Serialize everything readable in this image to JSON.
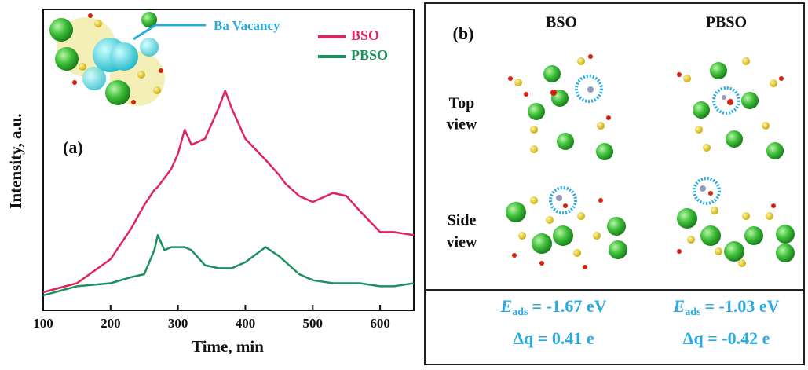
{
  "chart_data": {
    "type": "line",
    "xlabel": "Time, min",
    "ylabel": "Intensity, a.u.",
    "annotations": [
      "(a)",
      "Ba Vacancy"
    ],
    "x": [
      100,
      150,
      200,
      230,
      250,
      265,
      270,
      280,
      290,
      300,
      310,
      320,
      340,
      360,
      370,
      380,
      400,
      430,
      450,
      460,
      480,
      500,
      530,
      550,
      570,
      600,
      620,
      650
    ],
    "series": [
      {
        "name": "BSO",
        "color": "#e0245e",
        "values": [
          6,
          9,
          17,
          27,
          35,
          40,
          41,
          44,
          47,
          52,
          60,
          55,
          57,
          67,
          73,
          67,
          57,
          50,
          45,
          42,
          38,
          36,
          39,
          38,
          33,
          26,
          26,
          25
        ]
      },
      {
        "name": "PBSO",
        "color": "#1e9060",
        "values": [
          5,
          8,
          9,
          11,
          12,
          20,
          25,
          20,
          21,
          21,
          21,
          20,
          15,
          14,
          14,
          14,
          16,
          21,
          18,
          16,
          12,
          10,
          9,
          9,
          9,
          8,
          8,
          9
        ]
      }
    ],
    "xlim": [
      100,
      650
    ],
    "ylim": [
      0,
      100
    ],
    "xticks": [
      100,
      200,
      300,
      400,
      500,
      600
    ],
    "legend": "upper right",
    "grid": false
  },
  "panel_b": {
    "label": "(b)",
    "columns": [
      "BSO",
      "PBSO"
    ],
    "rows": [
      [
        "Top",
        "view"
      ],
      [
        "Side",
        "view"
      ]
    ],
    "results": [
      {
        "symbol": "E",
        "sub": "ads",
        "energy": "= -1.67 eV",
        "charge": "Δq = 0.41 e"
      },
      {
        "symbol": "E",
        "sub": "ads",
        "energy": "= -1.03 eV",
        "charge": "Δq = -0.42 e"
      }
    ]
  }
}
